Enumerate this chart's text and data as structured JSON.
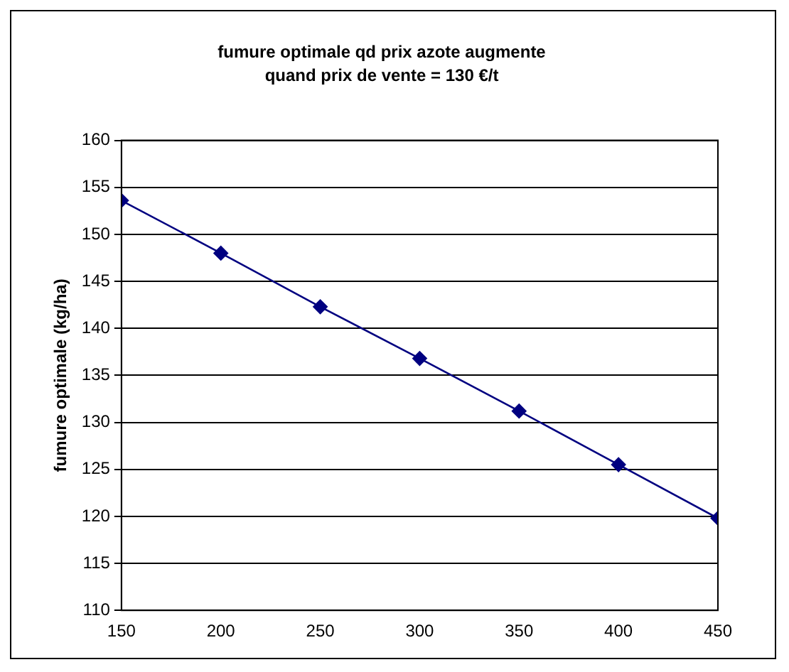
{
  "chart_data": {
    "type": "line",
    "title": "fumure optimale qd prix azote augmente",
    "subtitle": "quand prix de vente = 130 €/t",
    "ylabel": "fumure optimale (kg/ha)",
    "x": [
      150,
      200,
      250,
      300,
      350,
      400,
      450
    ],
    "series": [
      {
        "color": "#000080",
        "values": [
          153.6,
          148,
          142.3,
          136.8,
          131.2,
          125.5,
          119.8
        ]
      }
    ],
    "xlim": [
      150,
      450
    ],
    "xticks": [
      150,
      200,
      250,
      300,
      350,
      400,
      450
    ],
    "ylim": [
      110,
      160
    ],
    "yticks": [
      110,
      115,
      120,
      125,
      130,
      135,
      140,
      145,
      150,
      155,
      160
    ],
    "grid": "y",
    "legend": false,
    "marker": "diamond",
    "line_style": "solid"
  }
}
